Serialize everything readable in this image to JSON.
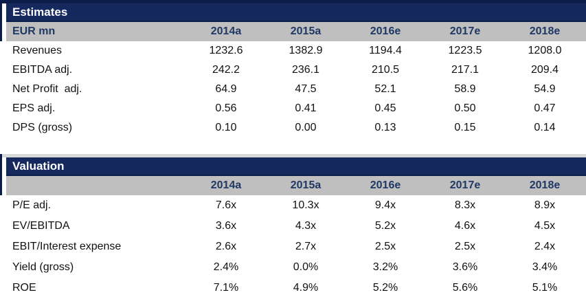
{
  "palette": {
    "navy": "#15295f",
    "navy_dark": "#0c1d49",
    "header_gray": "#bfbfbf",
    "year_text_navy": "#1f3864",
    "valuation_topline_gray": "#d9d9d9"
  },
  "columns": [
    "2014a",
    "2015a",
    "2016e",
    "2017e",
    "2018e"
  ],
  "estimates": {
    "title": "Estimates",
    "unit_label": "EUR mn",
    "rows": [
      {
        "label": "Revenues",
        "values": [
          "1232.6",
          "1382.9",
          "1194.4",
          "1223.5",
          "1208.0"
        ]
      },
      {
        "label": "EBITDA adj.",
        "values": [
          "242.2",
          "236.1",
          "210.5",
          "217.1",
          "209.4"
        ]
      },
      {
        "label": "Net Profit  adj.",
        "values": [
          "64.9",
          "47.5",
          "52.1",
          "58.9",
          "54.9"
        ]
      },
      {
        "label": "EPS adj.",
        "values": [
          "0.56",
          "0.41",
          "0.45",
          "0.50",
          "0.47"
        ]
      },
      {
        "label": "DPS (gross)",
        "values": [
          "0.10",
          "0.00",
          "0.13",
          "0.15",
          "0.14"
        ]
      }
    ]
  },
  "valuation": {
    "title": "Valuation",
    "unit_label": "",
    "rows": [
      {
        "label": "P/E adj.",
        "values": [
          "7.6x",
          "10.3x",
          "9.4x",
          "8.3x",
          "8.9x"
        ]
      },
      {
        "label": "EV/EBITDA",
        "values": [
          "3.6x",
          "4.3x",
          "5.2x",
          "4.6x",
          "4.5x"
        ]
      },
      {
        "label": "EBIT/Interest expense",
        "values": [
          "2.6x",
          "2.7x",
          "2.5x",
          "2.5x",
          "2.4x"
        ]
      },
      {
        "label": "Yield (gross)",
        "values": [
          "2.4%",
          "0.0%",
          "3.2%",
          "3.6%",
          "3.4%"
        ]
      },
      {
        "label": "ROE",
        "values": [
          "7.1%",
          "4.9%",
          "5.2%",
          "5.6%",
          "5.1%"
        ]
      }
    ]
  }
}
